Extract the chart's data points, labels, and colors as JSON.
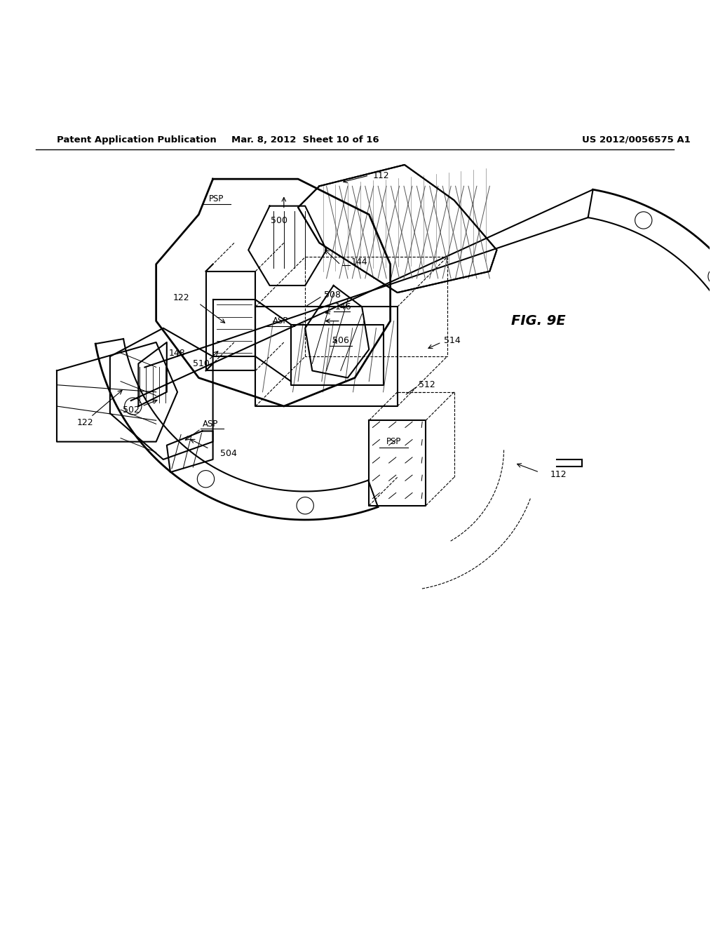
{
  "bg_color": "#ffffff",
  "line_color": "#000000",
  "header_left": "Patent Application Publication",
  "header_mid": "Mar. 8, 2012  Sheet 10 of 16",
  "header_right": "US 2012/0056575 A1",
  "fig_label": "FIG. 9E"
}
